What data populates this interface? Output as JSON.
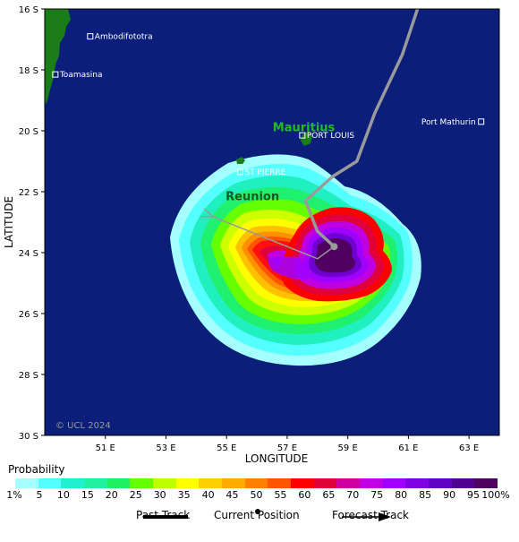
{
  "map": {
    "xlabel": "LONGITUDE",
    "ylabel": "LATITUDE",
    "copyright": "© UCL 2024",
    "lon_ticks": [
      "51 E",
      "53 E",
      "55 E",
      "57 E",
      "59 E",
      "61 E",
      "63 E"
    ],
    "lat_ticks": [
      "16 S",
      "18 S",
      "20 S",
      "22 S",
      "24 S",
      "26 S",
      "28 S",
      "30 S"
    ],
    "lon_range": [
      49,
      64
    ],
    "lat_range": [
      16,
      30
    ],
    "colors": {
      "ocean": "#0b1f7a",
      "land": "#1a7d1a",
      "track": "#9a9a9a"
    },
    "places": [
      {
        "name": "Ambodifototra",
        "lon": 50.5,
        "lat": 16.9
      },
      {
        "name": "Toamasina",
        "lon": 49.35,
        "lat": 18.15
      },
      {
        "name": "PORT LOUIS",
        "lon": 57.5,
        "lat": 20.15
      },
      {
        "name": "Port Mathurin",
        "lon": 63.4,
        "lat": 19.7
      },
      {
        "name": "ST PIERRE",
        "lon": 55.45,
        "lat": 21.35
      }
    ],
    "islands": [
      {
        "name": "Mauritius",
        "lon": 57.55,
        "lat": 20.25
      },
      {
        "name": "Reunion",
        "lon": 55.5,
        "lat": 21.1
      }
    ],
    "past_track": [
      [
        61.3,
        16.0
      ],
      [
        60.8,
        17.5
      ],
      [
        59.9,
        19.4
      ],
      [
        59.3,
        21.0
      ],
      [
        58.5,
        21.5
      ],
      [
        57.6,
        22.3
      ],
      [
        58.0,
        23.3
      ],
      [
        58.55,
        23.8
      ]
    ],
    "forecast_track": [
      [
        58.55,
        23.8
      ],
      [
        58.0,
        24.2
      ],
      [
        55.0,
        23.0
      ],
      [
        54.5,
        22.8
      ]
    ],
    "current_position": [
      58.55,
      23.8
    ]
  },
  "legend": {
    "title": "Probability",
    "labels": [
      "1%",
      "5",
      "10",
      "15",
      "20",
      "25",
      "30",
      "35",
      "40",
      "45",
      "50",
      "55",
      "60",
      "65",
      "70",
      "75",
      "80",
      "85",
      "90",
      "95",
      "100%"
    ],
    "colors": [
      "#a6ffff",
      "#55ffff",
      "#20f0d0",
      "#20f0a0",
      "#20f060",
      "#66ff00",
      "#bbff00",
      "#ffff00",
      "#ffd000",
      "#ffaa00",
      "#ff8000",
      "#ff5500",
      "#ff0000",
      "#e0003c",
      "#d000a0",
      "#c000e0",
      "#a000ff",
      "#8000e0",
      "#6000c0",
      "#500090",
      "#500060"
    ],
    "key": {
      "past_track": "Past Track",
      "current_position": "Current Position",
      "forecast_track": "Forecast Track"
    }
  }
}
